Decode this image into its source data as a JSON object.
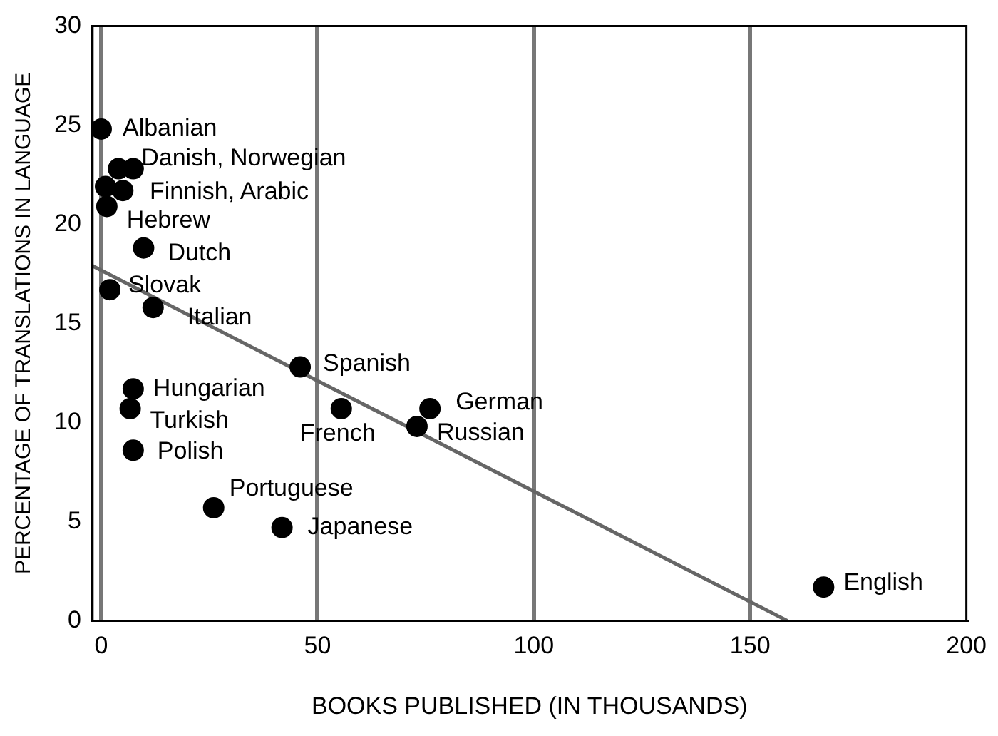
{
  "chart_data": {
    "type": "scatter",
    "xlabel": "BOOKS PUBLISHED (IN THOUSANDS)",
    "ylabel": "PERCENTAGE OF TRANSLATIONS IN LANGUAGE",
    "xlim": [
      -2,
      200
    ],
    "xticks": [
      0,
      50,
      100,
      150,
      200
    ],
    "ylim": [
      0,
      30
    ],
    "yticks": [
      0,
      5,
      10,
      15,
      20,
      25,
      30
    ],
    "grid": "x",
    "legend": false,
    "series": [
      {
        "color": "#000000",
        "marker": "circle",
        "x": [
          0,
          4,
          7.4,
          1,
          5,
          1.3,
          9.8,
          2,
          12,
          46,
          7.4,
          6.7,
          7.4,
          55.5,
          76,
          73,
          26,
          41.8,
          167
        ],
        "values": [
          24.8,
          22.8,
          22.8,
          21.9,
          21.7,
          20.9,
          18.8,
          16.7,
          15.8,
          12.8,
          11.7,
          10.7,
          8.6,
          10.7,
          10.7,
          9.8,
          5.7,
          4.7,
          1.7
        ]
      },
      {
        "type": "line",
        "color": "#666666",
        "marker": "none",
        "x": [
          -2,
          158.6
        ],
        "values": [
          17.9,
          0
        ]
      }
    ],
    "annotations": [
      {
        "text": "Albanian",
        "x": 0,
        "y": 24.8
      },
      {
        "text": "Danish, Norwegian",
        "x": 4,
        "y": 22.8
      },
      {
        "text": "Finnish, Arabic",
        "x": 1,
        "y": 21.9
      },
      {
        "text": "Hebrew",
        "x": 1.3,
        "y": 20.9
      },
      {
        "text": "Dutch",
        "x": 9.8,
        "y": 18.8
      },
      {
        "text": "Slovak",
        "x": 2,
        "y": 16.7
      },
      {
        "text": "Italian",
        "x": 12,
        "y": 15.8
      },
      {
        "text": "Spanish",
        "x": 46,
        "y": 12.8
      },
      {
        "text": "Hungarian",
        "x": 7.4,
        "y": 11.7
      },
      {
        "text": "Turkish",
        "x": 6.7,
        "y": 10.7
      },
      {
        "text": "Polish",
        "x": 7.4,
        "y": 8.6
      },
      {
        "text": "French",
        "x": 55.5,
        "y": 10.7
      },
      {
        "text": "German",
        "x": 76,
        "y": 10.7
      },
      {
        "text": "Russian",
        "x": 73,
        "y": 9.8
      },
      {
        "text": "Portuguese",
        "x": 26,
        "y": 5.7
      },
      {
        "text": "Japanese",
        "x": 41.8,
        "y": 4.7
      },
      {
        "text": "English",
        "x": 167,
        "y": 1.7
      }
    ]
  }
}
